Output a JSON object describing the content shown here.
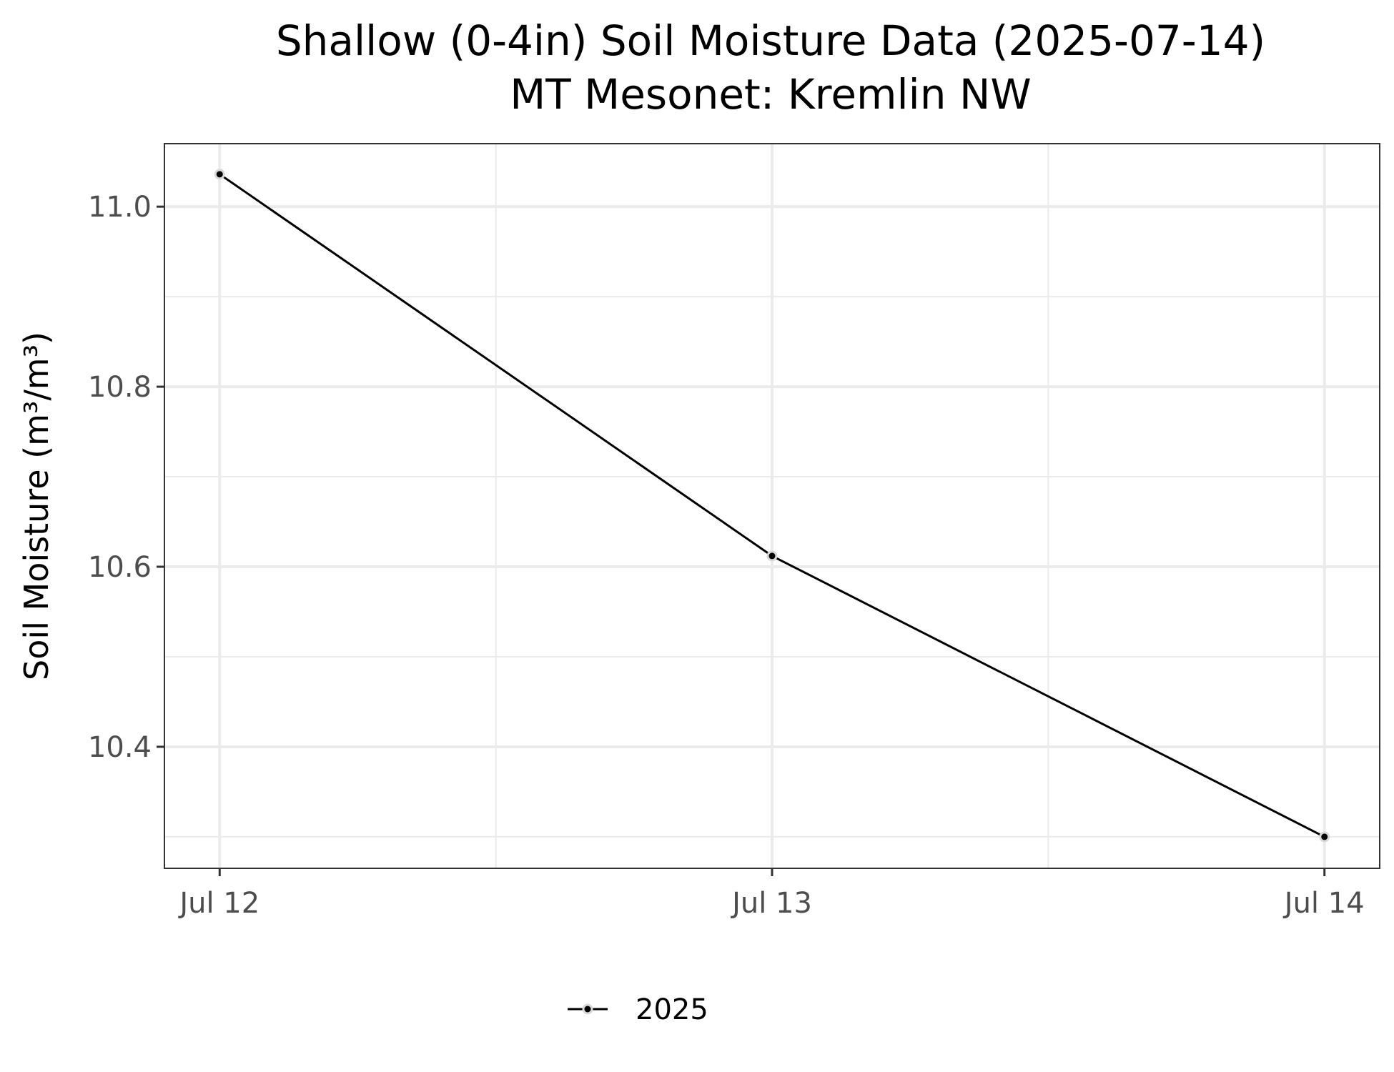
{
  "chart_data": {
    "type": "line",
    "title": "Shallow (0-4in) Soil Moisture Data (2025-07-14)",
    "subtitle": "MT Mesonet: Kremlin NW",
    "xlabel": "",
    "ylabel": "Soil Moisture (m³/m³)",
    "x": [
      "2025-07-12",
      "2025-07-13",
      "2025-07-14"
    ],
    "x_tick_labels": [
      "Jul 12",
      "Jul 13",
      "Jul 14"
    ],
    "y_ticks": [
      10.4,
      10.6,
      10.8,
      11.0
    ],
    "y_tick_labels": [
      "10.4",
      "10.6",
      "10.8",
      "11.0"
    ],
    "ylim": [
      10.265,
      11.07
    ],
    "grid": true,
    "legend_position": "bottom",
    "series": [
      {
        "name": "2025",
        "values": [
          11.036,
          10.612,
          10.3
        ],
        "color": "#000000"
      }
    ]
  }
}
